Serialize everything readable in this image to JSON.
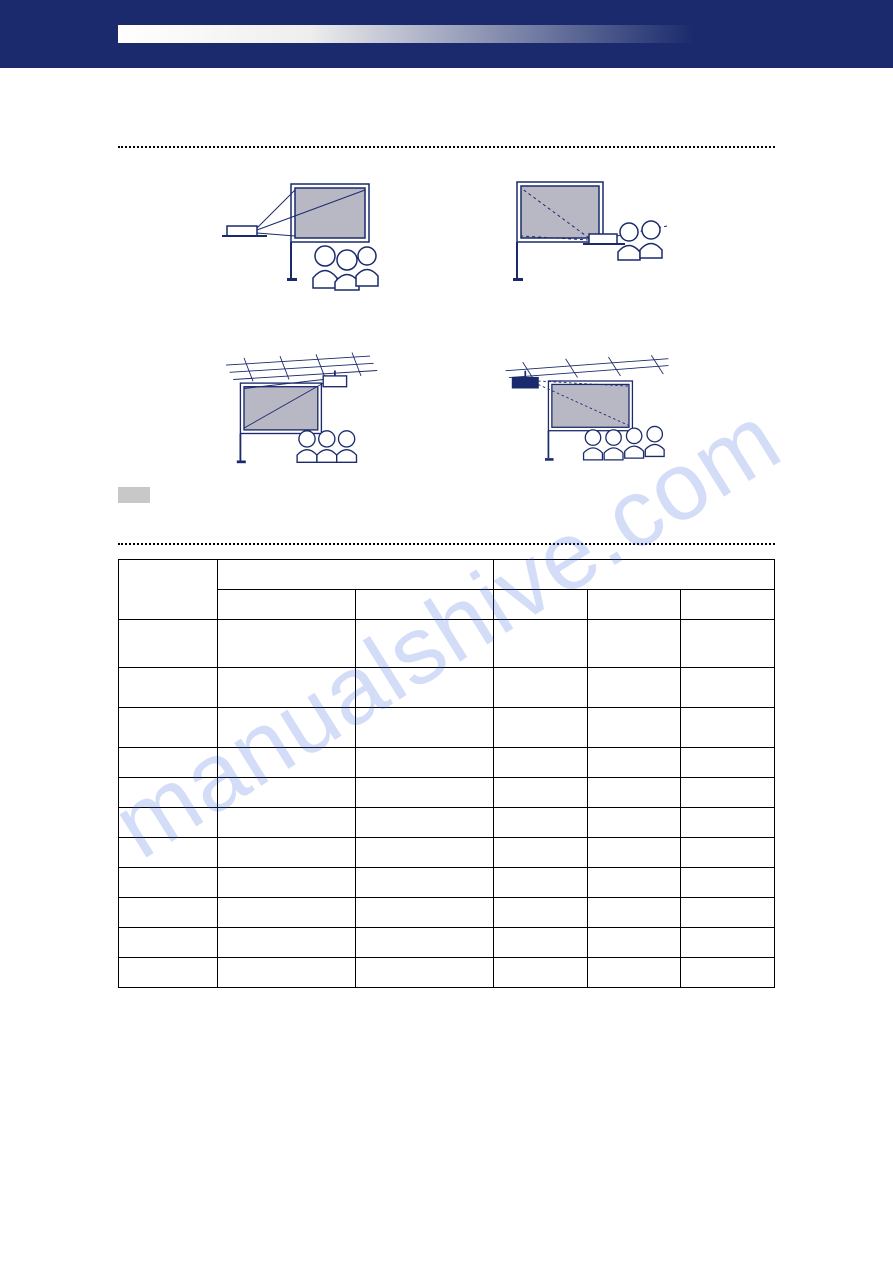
{
  "header": {
    "page_title": ""
  },
  "section1": {
    "heading": "",
    "row1": {
      "left_caption": "",
      "right_caption": ""
    },
    "row2": {
      "left_caption": "",
      "right_caption": ""
    },
    "note_text": ""
  },
  "section2": {
    "heading": ""
  },
  "table": {
    "header": {
      "col1": "",
      "col2_span": "",
      "col3_span": ""
    },
    "subheader": {
      "c2a": "",
      "c2b": "",
      "c3a": "",
      "c3b": "",
      "c3c": ""
    },
    "rows": [
      {
        "c1": "",
        "c2a": "",
        "c2b": "",
        "c3a": "",
        "c3b": "",
        "c3c": "",
        "cls": "tall"
      },
      {
        "c1": "",
        "c2a": "",
        "c2b": "",
        "c3a": "",
        "c3b": "",
        "c3c": "",
        "cls": "med"
      },
      {
        "c1": "",
        "c2a": "",
        "c2b": "",
        "c3a": "",
        "c3b": "",
        "c3c": "",
        "cls": "med"
      },
      {
        "c1": "",
        "c2a": "",
        "c2b": "",
        "c3a": "",
        "c3b": "",
        "c3c": "",
        "cls": "reg"
      },
      {
        "c1": "",
        "c2a": "",
        "c2b": "",
        "c3a": "",
        "c3b": "",
        "c3c": "",
        "cls": "reg"
      },
      {
        "c1": "",
        "c2a": "",
        "c2b": "",
        "c3a": "",
        "c3b": "",
        "c3c": "",
        "cls": "reg"
      },
      {
        "c1": "",
        "c2a": "",
        "c2b": "",
        "c3a": "",
        "c3b": "",
        "c3c": "",
        "cls": "reg"
      },
      {
        "c1": "",
        "c2a": "",
        "c2b": "",
        "c3a": "",
        "c3b": "",
        "c3c": "",
        "cls": "reg"
      },
      {
        "c1": "",
        "c2a": "",
        "c2b": "",
        "c3a": "",
        "c3b": "",
        "c3c": "",
        "cls": "reg"
      },
      {
        "c1": "",
        "c2a": "",
        "c2b": "",
        "c3a": "",
        "c3b": "",
        "c3c": "",
        "cls": "reg"
      },
      {
        "c1": "",
        "c2a": "",
        "c2b": "",
        "c3a": "",
        "c3b": "",
        "c3c": "",
        "cls": "reg"
      }
    ]
  },
  "watermark": {
    "text": "manualshive.com",
    "color": "rgba(60,100,220,0.22)",
    "fontsize": 96,
    "rotation_deg": -32
  },
  "colors": {
    "header_bg": "#1a2a6c",
    "screen_fill": "#b8b8c4",
    "line_stroke": "#1a2a6c",
    "note_chip": "#c8c8c8"
  }
}
